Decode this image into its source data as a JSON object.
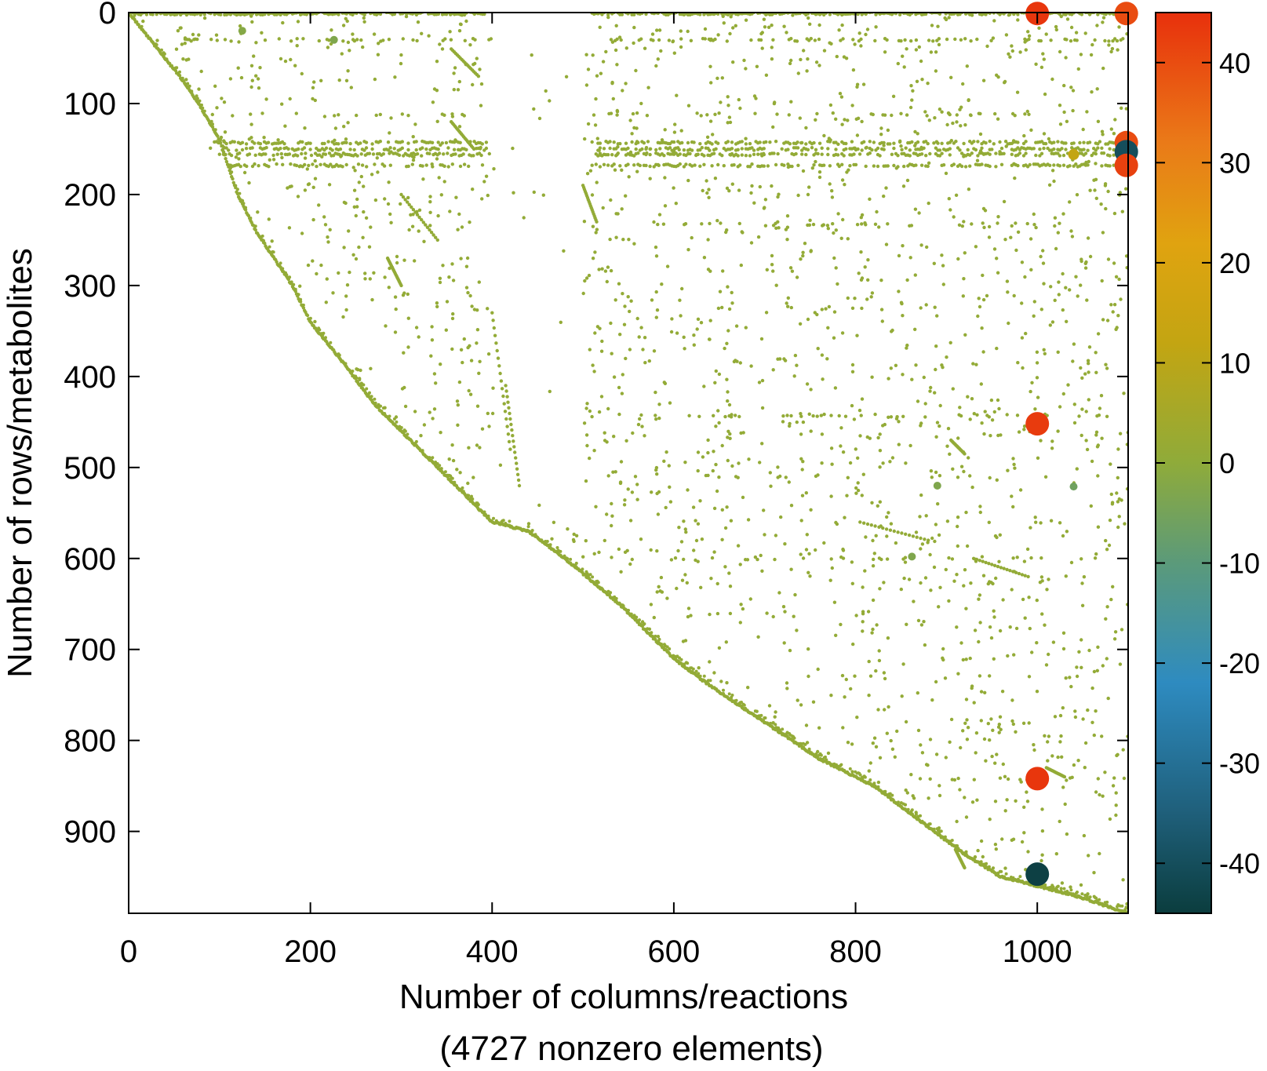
{
  "chart_data": {
    "type": "scatter",
    "subtype": "sparse-matrix-spy-plot",
    "xlabel": "Number of columns/reactions",
    "xlabel_note": "(4727 nonzero elements)",
    "ylabel": "Number of rows/metabolites",
    "xlim": [
      0,
      1100
    ],
    "ylim": [
      990,
      0
    ],
    "y_axis_inverted": true,
    "x_ticks": [
      0,
      200,
      400,
      600,
      800,
      1000
    ],
    "y_ticks": [
      0,
      100,
      200,
      300,
      400,
      500,
      600,
      700,
      800,
      900
    ],
    "nonzero_count": 4727,
    "grid": false,
    "colorbar": {
      "range": [
        -45,
        45
      ],
      "ticks": [
        40,
        30,
        20,
        10,
        0,
        -10,
        -20,
        -30,
        -40
      ],
      "stops": [
        {
          "v": -45,
          "color": "#0b3d3e"
        },
        {
          "v": -35,
          "color": "#1f5f7a"
        },
        {
          "v": -22,
          "color": "#2e8bc0"
        },
        {
          "v": -10,
          "color": "#5b9a7a"
        },
        {
          "v": 0,
          "color": "#8fab3a"
        },
        {
          "v": 12,
          "color": "#c3a512"
        },
        {
          "v": 22,
          "color": "#e0a310"
        },
        {
          "v": 32,
          "color": "#ea7a18"
        },
        {
          "v": 45,
          "color": "#e8300c"
        }
      ]
    },
    "highlighted_points": [
      {
        "x": 1000,
        "y": 1,
        "value": 44
      },
      {
        "x": 1098,
        "y": 1,
        "value": 40
      },
      {
        "x": 1098,
        "y": 143,
        "value": 40
      },
      {
        "x": 1098,
        "y": 153,
        "value": -40
      },
      {
        "x": 1098,
        "y": 168,
        "value": 42
      },
      {
        "x": 1000,
        "y": 452,
        "value": 43
      },
      {
        "x": 1000,
        "y": 842,
        "value": 44
      },
      {
        "x": 1000,
        "y": 947,
        "value": -44
      },
      {
        "x": 1040,
        "y": 156,
        "value": 12
      },
      {
        "x": 1040,
        "y": 521,
        "value": -6
      },
      {
        "x": 890,
        "y": 520,
        "value": -3
      },
      {
        "x": 226,
        "y": 30,
        "value": -3
      },
      {
        "x": 125,
        "y": 20,
        "value": -2
      },
      {
        "x": 862,
        "y": 598,
        "value": -3
      }
    ],
    "diagonal_profile": [
      [
        0,
        0
      ],
      [
        20,
        25
      ],
      [
        40,
        50
      ],
      [
        60,
        75
      ],
      [
        80,
        105
      ],
      [
        100,
        140
      ],
      [
        110,
        170
      ],
      [
        120,
        200
      ],
      [
        140,
        240
      ],
      [
        160,
        270
      ],
      [
        180,
        300
      ],
      [
        200,
        340
      ],
      [
        240,
        390
      ],
      [
        270,
        430
      ],
      [
        300,
        460
      ],
      [
        340,
        500
      ],
      [
        370,
        530
      ],
      [
        400,
        560
      ],
      [
        420,
        565
      ],
      [
        440,
        570
      ],
      [
        480,
        600
      ],
      [
        540,
        650
      ],
      [
        600,
        710
      ],
      [
        640,
        740
      ],
      [
        700,
        780
      ],
      [
        760,
        820
      ],
      [
        820,
        850
      ],
      [
        860,
        880
      ],
      [
        900,
        910
      ],
      [
        920,
        925
      ],
      [
        960,
        950
      ],
      [
        1040,
        970
      ],
      [
        1100,
        990
      ]
    ],
    "horizontal_bands": [
      {
        "y": 1,
        "x_ranges": [
          [
            0,
            390
          ],
          [
            510,
            1100
          ]
        ],
        "density": 0.9
      },
      {
        "y": 30,
        "x_ranges": [
          [
            60,
            400
          ],
          [
            520,
            1100
          ]
        ],
        "density": 0.25
      },
      {
        "y": 112,
        "x_ranges": [
          [
            90,
            400
          ],
          [
            520,
            1000
          ]
        ],
        "density": 0.12
      },
      {
        "y": 143,
        "x_ranges": [
          [
            90,
            400
          ],
          [
            510,
            1100
          ]
        ],
        "density": 0.55
      },
      {
        "y": 150,
        "x_ranges": [
          [
            90,
            400
          ],
          [
            510,
            1100
          ]
        ],
        "density": 0.55
      },
      {
        "y": 156,
        "x_ranges": [
          [
            100,
            400
          ],
          [
            510,
            1100
          ]
        ],
        "density": 0.6
      },
      {
        "y": 168,
        "x_ranges": [
          [
            110,
            400
          ],
          [
            510,
            1100
          ]
        ],
        "density": 0.45
      },
      {
        "y": 233,
        "x_ranges": [
          [
            580,
            1100
          ]
        ],
        "density": 0.1
      },
      {
        "y": 443,
        "x_ranges": [
          [
            540,
            1100
          ]
        ],
        "density": 0.15
      },
      {
        "y": 510,
        "x_ranges": [
          [
            620,
            1100
          ]
        ],
        "density": 0.1
      },
      {
        "y": 600,
        "x_ranges": [
          [
            560,
            1090
          ]
        ],
        "density": 0.12
      },
      {
        "y": 842,
        "x_ranges": [
          [
            880,
            1100
          ]
        ],
        "density": 0.15
      }
    ]
  }
}
